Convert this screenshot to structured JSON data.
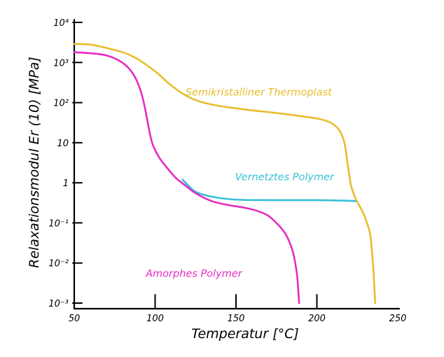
{
  "chart_data": {
    "type": "line",
    "xlabel": "Temperatur [°C]",
    "ylabel": "Relaxationsmodul  Er (10) [MPa]",
    "xlim": [
      50,
      250
    ],
    "ylim": [
      0.001,
      10000
    ],
    "y_scale": "log",
    "grid": false,
    "legend": "none",
    "x_ticks": [
      {
        "value": 50,
        "label": "50"
      },
      {
        "value": 100,
        "label": "100"
      },
      {
        "value": 150,
        "label": "150"
      },
      {
        "value": 200,
        "label": "200"
      },
      {
        "value": 250,
        "label": "250"
      }
    ],
    "y_ticks": [
      {
        "value": 10000,
        "label": "10⁴"
      },
      {
        "value": 1000,
        "label": "10³"
      },
      {
        "value": 100,
        "label": "10²"
      },
      {
        "value": 10,
        "label": "10"
      },
      {
        "value": 1,
        "label": "1"
      },
      {
        "value": 0.1,
        "label": "10⁻¹"
      },
      {
        "value": 0.01,
        "label": "10⁻²"
      },
      {
        "value": 0.001,
        "label": "10⁻³"
      }
    ],
    "series": [
      {
        "name": "Semikristalliner Thermoplast",
        "color": "#e8bd2c",
        "label_at": [
          164,
          150
        ],
        "points": [
          [
            50,
            2900
          ],
          [
            60,
            2800
          ],
          [
            70,
            2300
          ],
          [
            80,
            1800
          ],
          [
            88,
            1300
          ],
          [
            95,
            850
          ],
          [
            102,
            520
          ],
          [
            108,
            310
          ],
          [
            115,
            190
          ],
          [
            122,
            130
          ],
          [
            130,
            100
          ],
          [
            140,
            82
          ],
          [
            150,
            72
          ],
          [
            160,
            64
          ],
          [
            170,
            58
          ],
          [
            180,
            52
          ],
          [
            190,
            46
          ],
          [
            200,
            40
          ],
          [
            206,
            35
          ],
          [
            210,
            29
          ],
          [
            214,
            20
          ],
          [
            217,
            10
          ],
          [
            219,
            3
          ],
          [
            221,
            0.9
          ],
          [
            224,
            0.4
          ],
          [
            228,
            0.2
          ],
          [
            231,
            0.1
          ],
          [
            233,
            0.05
          ],
          [
            234,
            0.02
          ],
          [
            235,
            0.006
          ],
          [
            236,
            0.001
          ]
        ]
      },
      {
        "name": "Vernetztes Polymer",
        "color": "#38c0d6",
        "label_at": [
          180,
          1.15
        ],
        "points": [
          [
            117,
            1.2
          ],
          [
            120,
            0.9
          ],
          [
            125,
            0.6
          ],
          [
            135,
            0.45
          ],
          [
            150,
            0.38
          ],
          [
            170,
            0.37
          ],
          [
            185,
            0.37
          ],
          [
            200,
            0.37
          ],
          [
            215,
            0.36
          ],
          [
            224,
            0.35
          ]
        ]
      },
      {
        "name": "Amorphes Polymer",
        "color": "#e52bc2",
        "label_at": [
          124,
          0.0045
        ],
        "points": [
          [
            50,
            1800
          ],
          [
            60,
            1700
          ],
          [
            70,
            1500
          ],
          [
            78,
            1100
          ],
          [
            84,
            700
          ],
          [
            88,
            400
          ],
          [
            91,
            200
          ],
          [
            93,
            100
          ],
          [
            95,
            40
          ],
          [
            97,
            15
          ],
          [
            99,
            8
          ],
          [
            103,
            4
          ],
          [
            108,
            2.2
          ],
          [
            113,
            1.3
          ],
          [
            118,
            0.9
          ],
          [
            125,
            0.55
          ],
          [
            135,
            0.35
          ],
          [
            145,
            0.28
          ],
          [
            155,
            0.24
          ],
          [
            163,
            0.2
          ],
          [
            170,
            0.15
          ],
          [
            176,
            0.09
          ],
          [
            181,
            0.05
          ],
          [
            185,
            0.02
          ],
          [
            187,
            0.008
          ],
          [
            188,
            0.004
          ],
          [
            189,
            0.001
          ]
        ]
      }
    ]
  }
}
